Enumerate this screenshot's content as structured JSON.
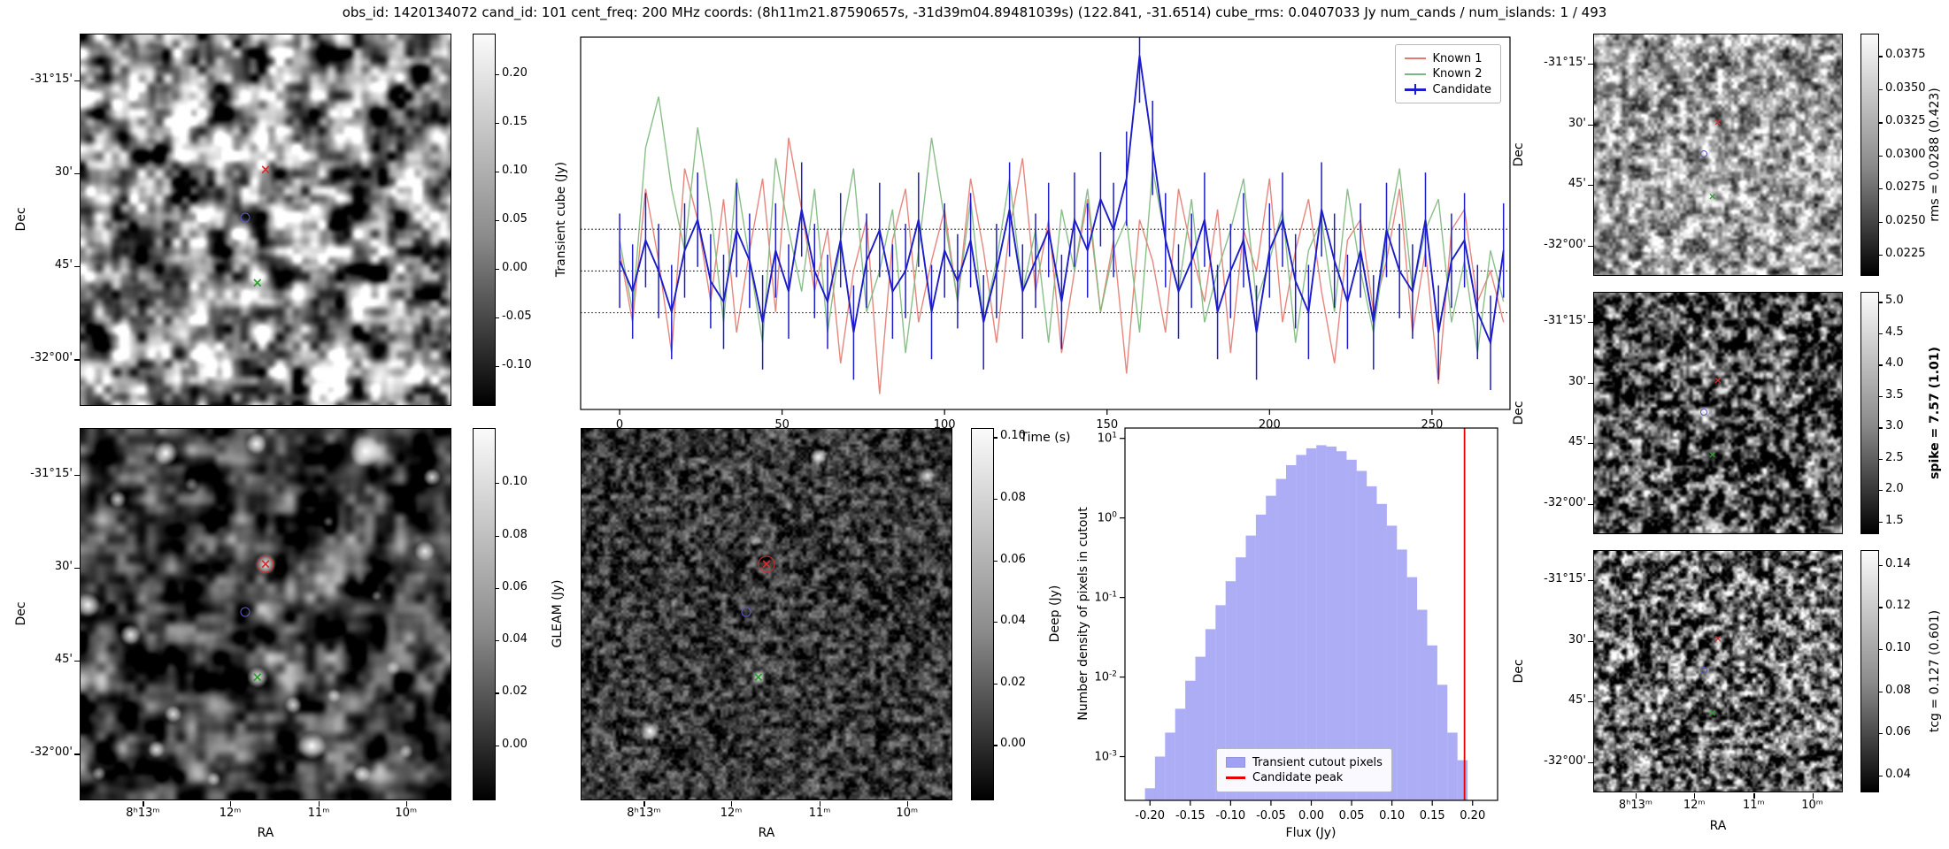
{
  "figure_title": "obs_id: 1420134072 cand_id: 101 cent_freq: 200 MHz coords: (8h11m21.87590657s, -31d39m04.89481039s) (122.841, -31.6514) cube_rms: 0.0407033 Jy num_cands / num_islands: 1 / 493",
  "axes": {
    "dec_label": "Dec",
    "ra_label": "RA",
    "dec_ticks": [
      "-31°15'",
      "30'",
      "45'",
      "-32°00'"
    ],
    "ra_ticks": [
      "8ʰ13ᵐ",
      "12ᵐ",
      "11ᵐ",
      "10ᵐ"
    ]
  },
  "markers": [
    {
      "name": "known-source-1",
      "symbol": "x",
      "color": "#d62d2d",
      "fx": 0.5,
      "fy": 0.365
    },
    {
      "name": "candidate",
      "symbol": "o",
      "color": "#5c5cc8",
      "fx": 0.445,
      "fy": 0.495
    },
    {
      "name": "known-source-2",
      "symbol": "x",
      "color": "#2e9e2e",
      "fx": 0.478,
      "fy": 0.67
    }
  ],
  "colorbars": {
    "transient": {
      "label": "Transient cube (Jy)",
      "ticks": [
        "0.20",
        "0.15",
        "0.10",
        "0.05",
        "0.00",
        "-0.05",
        "-0.10"
      ],
      "vmin": -0.141,
      "vmax": 0.242
    },
    "gleam": {
      "label": "GLEAM (Jy)",
      "ticks": [
        "0.10",
        "0.08",
        "0.06",
        "0.04",
        "0.02",
        "0.00"
      ],
      "vmin": -0.021,
      "vmax": 0.121
    },
    "deep": {
      "label": "Deep (Jy)",
      "ticks": [
        "0.10",
        "0.08",
        "0.06",
        "0.04",
        "0.02",
        "0.00"
      ],
      "vmin": -0.018,
      "vmax": 0.103
    },
    "rms": {
      "label": "rms = 0.0288 (0.423)",
      "ticks": [
        "0.0375",
        "0.0350",
        "0.0325",
        "0.0300",
        "0.0275",
        "0.0250",
        "0.0225"
      ],
      "vmin": 0.0209,
      "vmax": 0.0392
    },
    "spike": {
      "label": "spike = 7.57 (1.01)",
      "ticks": [
        "5.0",
        "4.5",
        "4.0",
        "3.5",
        "3.0",
        "2.5",
        "2.0",
        "1.5"
      ],
      "vmin": 1.3,
      "vmax": 5.16
    },
    "tcg": {
      "label": "tcg = 0.127 (0.601)",
      "ticks": [
        "0.14",
        "0.12",
        "0.10",
        "0.08",
        "0.06",
        "0.04"
      ],
      "vmin": 0.032,
      "vmax": 0.147
    }
  },
  "chart_data": [
    {
      "name": "lightcurve",
      "type": "line",
      "xlabel": "Time (s)",
      "ylabel": "Transient cube (Jy)",
      "xlim": [
        -12,
        274
      ],
      "ylim": [
        -0.135,
        0.228
      ],
      "xticks": [
        0,
        50,
        100,
        150,
        200,
        250
      ],
      "reference_lines": [
        0.0407,
        0,
        -0.0407
      ],
      "legend_position": "upper right",
      "x": [
        0,
        4,
        8,
        12,
        16,
        20,
        24,
        28,
        32,
        36,
        40,
        44,
        48,
        52,
        56,
        60,
        64,
        68,
        72,
        76,
        80,
        84,
        88,
        92,
        96,
        100,
        104,
        108,
        112,
        116,
        120,
        124,
        128,
        132,
        136,
        140,
        144,
        148,
        152,
        156,
        160,
        164,
        168,
        172,
        176,
        180,
        184,
        188,
        192,
        196,
        200,
        204,
        208,
        212,
        216,
        220,
        224,
        228,
        232,
        236,
        240,
        244,
        248,
        252,
        256,
        260,
        264,
        268,
        272
      ],
      "series": [
        {
          "name": "Known 1",
          "color": "#e4796f",
          "values": [
            0.02,
            -0.05,
            0.08,
            0.01,
            -0.08,
            0.1,
            0.05,
            -0.03,
            0.07,
            -0.06,
            0.02,
            0.09,
            -0.04,
            0.13,
            0.06,
            -0.02,
            0.04,
            -0.09,
            0.0,
            0.05,
            -0.12,
            0.03,
            0.08,
            -0.05,
            0.01,
            0.06,
            -0.03,
            0.09,
            0.02,
            -0.07,
            0.04,
            0.11,
            -0.02,
            0.05,
            -0.08,
            0.0,
            0.07,
            -0.04,
            0.03,
            -0.1,
            0.05,
            0.01,
            -0.06,
            0.08,
            0.02,
            -0.03,
            0.06,
            -0.08,
            0.04,
            0.0,
            0.09,
            -0.05,
            0.02,
            0.07,
            -0.02,
            -0.09,
            0.03,
            0.05,
            -0.04,
            0.01,
            0.08,
            -0.06,
            0.02,
            -0.11,
            0.04,
            0.06,
            -0.03,
            0.0,
            -0.05
          ]
        },
        {
          "name": "Known 2",
          "color": "#7cb87c",
          "values": [
            0.03,
            -0.04,
            0.12,
            0.17,
            0.08,
            0.02,
            0.14,
            0.06,
            -0.05,
            0.09,
            0.01,
            -0.07,
            0.11,
            0.04,
            -0.02,
            0.08,
            -0.06,
            0.03,
            0.1,
            -0.04,
            0.0,
            0.06,
            -0.08,
            0.02,
            0.13,
            0.05,
            -0.03,
            0.07,
            -0.05,
            0.01,
            0.09,
            -0.02,
            0.04,
            -0.07,
            0.06,
            0.0,
            0.08,
            -0.04,
            0.02,
            0.05,
            -0.06,
            0.1,
            0.03,
            -0.02,
            0.07,
            -0.05,
            0.0,
            0.04,
            0.09,
            -0.03,
            0.01,
            0.06,
            -0.07,
            0.02,
            0.05,
            -0.04,
            0.08,
            0.0,
            -0.06,
            0.03,
            0.1,
            -0.02,
            0.04,
            0.07,
            -0.05,
            0.01,
            -0.08,
            0.02,
            -0.03
          ]
        },
        {
          "name": "Candidate",
          "color": "#1c1cc8",
          "yerr": 0.046,
          "values": [
            0.01,
            -0.02,
            0.03,
            0.0,
            -0.04,
            0.02,
            0.05,
            -0.01,
            -0.03,
            0.04,
            0.01,
            -0.05,
            0.02,
            -0.02,
            0.06,
            0.0,
            -0.03,
            0.03,
            -0.06,
            0.01,
            0.04,
            -0.02,
            0.0,
            0.05,
            -0.04,
            0.02,
            -0.01,
            0.03,
            -0.05,
            0.0,
            0.06,
            -0.02,
            0.01,
            0.04,
            -0.03,
            0.05,
            0.02,
            0.07,
            0.04,
            0.09,
            0.21,
            0.12,
            0.03,
            -0.02,
            0.01,
            0.05,
            -0.04,
            0.0,
            0.03,
            -0.06,
            0.02,
            0.05,
            -0.01,
            -0.04,
            0.06,
            0.01,
            -0.03,
            0.02,
            -0.05,
            0.04,
            0.0,
            -0.02,
            0.05,
            -0.06,
            0.01,
            0.03,
            -0.04,
            -0.07,
            0.02
          ]
        }
      ]
    },
    {
      "name": "flux_histogram",
      "type": "bar",
      "xlabel": "Flux (Jy)",
      "ylabel": "Number density of pixels in cutout",
      "yscale": "log",
      "xlim": [
        -0.231,
        0.231
      ],
      "xticks": [
        -0.2,
        -0.15,
        -0.1,
        -0.05,
        0.0,
        0.05,
        0.1,
        0.15,
        0.2
      ],
      "ytick_exponents": [
        1,
        0,
        -1,
        -2,
        -3
      ],
      "bar_color": "#7b7bf0",
      "bin_width": 0.0125,
      "bin_centers": [
        -0.2,
        -0.1875,
        -0.175,
        -0.1625,
        -0.15,
        -0.1375,
        -0.125,
        -0.1125,
        -0.1,
        -0.0875,
        -0.075,
        -0.0625,
        -0.05,
        -0.0375,
        -0.025,
        -0.0125,
        0,
        0.0125,
        0.025,
        0.0375,
        0.05,
        0.0625,
        0.075,
        0.0875,
        0.1,
        0.1125,
        0.125,
        0.1375,
        0.15,
        0.1625,
        0.175,
        0.1875
      ],
      "densities": [
        0.0004,
        0.001,
        0.002,
        0.004,
        0.009,
        0.018,
        0.04,
        0.08,
        0.16,
        0.32,
        0.6,
        1.1,
        1.9,
        3.1,
        4.6,
        6.2,
        7.5,
        8.2,
        7.9,
        6.9,
        5.4,
        3.9,
        2.5,
        1.5,
        0.8,
        0.4,
        0.18,
        0.07,
        0.025,
        0.008,
        0.002,
        0.0009
      ],
      "candidate_peak": 0.19,
      "candidate_peak_color": "#e60000",
      "legend": [
        "Transient cutout pixels",
        "Candidate peak"
      ]
    }
  ]
}
